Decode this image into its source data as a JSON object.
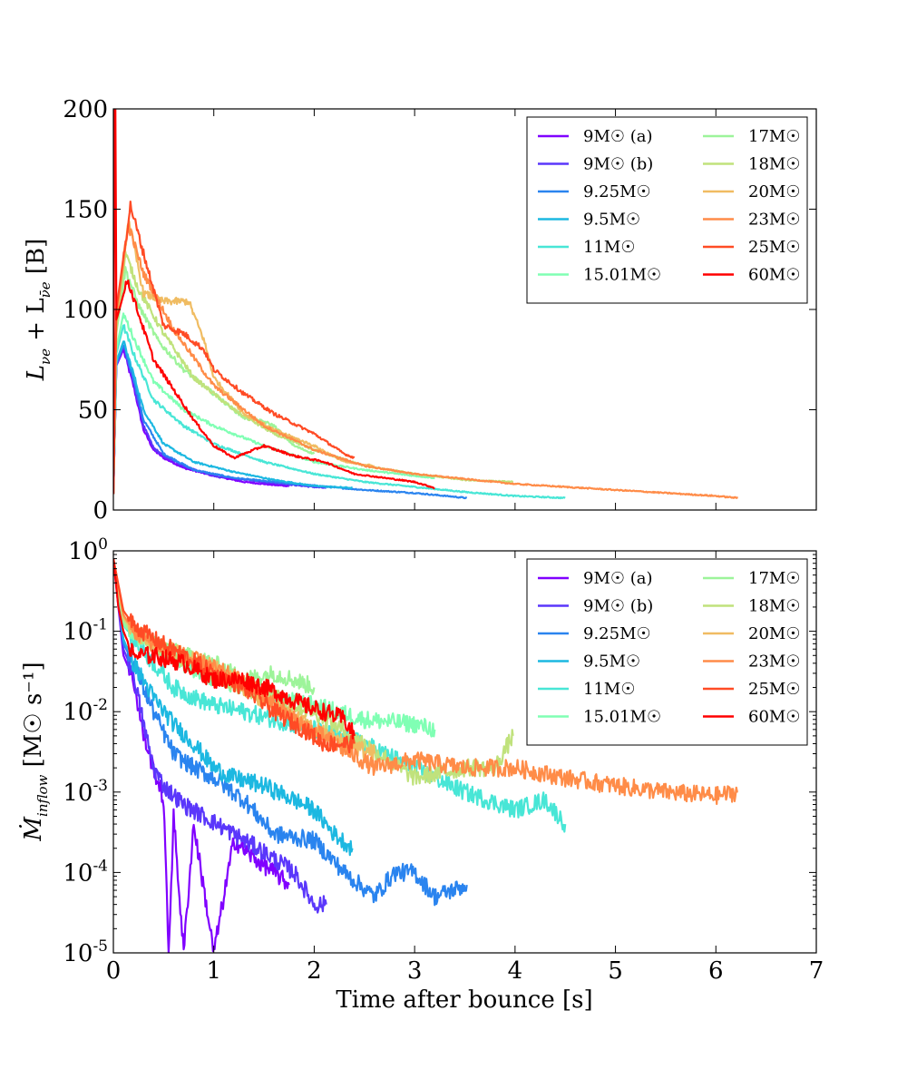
{
  "chart_data": [
    {
      "type": "line",
      "panel": "top",
      "ylabel_text": "L",
      "ylabel_sub1": "νe",
      "ylabel_plus": " + L",
      "ylabel_sub2": "ν̄e",
      "ylabel_unit": " [B]",
      "xlim": [
        0,
        7
      ],
      "ylim": [
        0,
        200
      ],
      "y_ticks": [
        "0",
        "50",
        "100",
        "150",
        "200"
      ],
      "legend_placement": "top-right",
      "series": [
        {
          "name": "9M☉ (a)",
          "color": "#8000ff",
          "x": [
            0,
            0.03,
            0.1,
            0.2,
            0.3,
            0.4,
            0.5,
            0.7,
            1.0,
            1.3,
            1.6,
            1.75
          ],
          "y": [
            8,
            72,
            80,
            62,
            40,
            30,
            26,
            21,
            17,
            14,
            12.5,
            12
          ]
        },
        {
          "name": "9M☉ (b)",
          "color": "#5a37fb",
          "x": [
            0,
            0.03,
            0.1,
            0.2,
            0.3,
            0.4,
            0.5,
            0.7,
            1.0,
            1.5,
            2.0,
            2.12
          ],
          "y": [
            8,
            72,
            82,
            64,
            42,
            31,
            27,
            22,
            17,
            14,
            11.5,
            11
          ]
        },
        {
          "name": "9.25M☉",
          "color": "#2a84ef",
          "x": [
            0,
            0.03,
            0.1,
            0.2,
            0.3,
            0.5,
            0.8,
            1.2,
            1.8,
            2.5,
            3.0,
            3.52
          ],
          "y": [
            8,
            73,
            82,
            66,
            45,
            28,
            20,
            16,
            13,
            10,
            8.5,
            6
          ]
        },
        {
          "name": "9.5M☉",
          "color": "#1cb8e1",
          "x": [
            0,
            0.03,
            0.1,
            0.2,
            0.3,
            0.5,
            0.8,
            1.2,
            1.6,
            2.0,
            2.38
          ],
          "y": [
            8,
            74,
            84,
            68,
            50,
            33,
            24,
            19,
            15,
            12,
            11
          ]
        },
        {
          "name": "11M☉",
          "color": "#48e6d6",
          "x": [
            0,
            0.03,
            0.1,
            0.2,
            0.4,
            0.7,
            1.0,
            1.5,
            2.0,
            2.5,
            3.0,
            3.5,
            4.0,
            4.5
          ],
          "y": [
            8,
            78,
            92,
            78,
            55,
            42,
            33,
            24,
            18,
            14,
            11.5,
            9,
            7,
            6
          ]
        },
        {
          "name": "15.01M☉",
          "color": "#80ffb4",
          "x": [
            0,
            0.03,
            0.1,
            0.2,
            0.4,
            0.7,
            1.0,
            1.5,
            2.0,
            2.5,
            3.0,
            3.2
          ],
          "y": [
            8,
            80,
            98,
            86,
            64,
            50,
            42,
            32,
            24,
            20,
            17,
            16
          ]
        },
        {
          "name": "17M☉",
          "color": "#9df49a",
          "x": [
            0,
            0.03,
            0.12,
            0.25,
            0.45,
            0.7,
            1.0,
            1.3,
            1.5,
            1.6,
            1.8,
            2.0
          ],
          "y": [
            8,
            88,
            120,
            102,
            84,
            70,
            58,
            46,
            44,
            42,
            32,
            28
          ]
        },
        {
          "name": "18M☉",
          "color": "#c0e27c",
          "x": [
            0,
            0.03,
            0.12,
            0.25,
            0.5,
            0.8,
            1.2,
            1.6,
            2.0,
            2.5,
            3.0,
            3.5,
            3.98
          ],
          "y": [
            8,
            90,
            128,
            110,
            88,
            66,
            50,
            38,
            30,
            22,
            18,
            15,
            14
          ]
        },
        {
          "name": "20M☉",
          "color": "#f0bc62",
          "x": [
            0,
            0.03,
            0.15,
            0.3,
            0.5,
            0.75,
            0.9,
            1.0,
            1.3,
            1.6,
            2.0,
            2.3,
            2.6
          ],
          "y": [
            8,
            95,
            145,
            108,
            104,
            104,
            85,
            66,
            48,
            40,
            32,
            24,
            22
          ]
        },
        {
          "name": "23M☉",
          "color": "#ff8c48",
          "x": [
            0,
            0.03,
            0.15,
            0.3,
            0.6,
            1.0,
            1.5,
            2.0,
            2.5,
            3.0,
            4.0,
            5.0,
            5.5,
            6.0,
            6.22
          ],
          "y": [
            8,
            97,
            142,
            118,
            90,
            62,
            42,
            30,
            22,
            18,
            13,
            10,
            8.5,
            7,
            6
          ]
        },
        {
          "name": "25M☉",
          "color": "#ff4b25",
          "x": [
            0,
            0.03,
            0.17,
            0.3,
            0.5,
            0.7,
            0.9,
            1.0,
            1.3,
            1.6,
            2.0,
            2.3,
            2.4
          ],
          "y": [
            8,
            100,
            152,
            128,
            92,
            88,
            80,
            70,
            58,
            48,
            38,
            28,
            26
          ]
        },
        {
          "name": "60M☉",
          "color": "#ff0000",
          "x": [
            0,
            0.01,
            0.015,
            0.02,
            0.03,
            0.06,
            0.14,
            0.25,
            0.4,
            0.6,
            0.8,
            1.0,
            1.2,
            1.5,
            1.8,
            2.1,
            2.4,
            2.7,
            3.0,
            3.2
          ],
          "y": [
            8,
            200,
            150,
            200,
            95,
            100,
            115,
            98,
            75,
            60,
            45,
            32,
            26,
            32,
            27,
            24,
            18,
            16,
            14,
            11
          ]
        }
      ]
    },
    {
      "type": "line",
      "panel": "bottom",
      "ylabel_text": "Ṁ",
      "ylabel_sub1": "inflow",
      "ylabel_unit": " [M☉ s⁻¹]",
      "xlabel": "Time after bounce [s]",
      "xlim": [
        0,
        7
      ],
      "ylim": [
        1e-05,
        1
      ],
      "yscale": "log",
      "x_ticks": [
        "0",
        "1",
        "2",
        "3",
        "4",
        "5",
        "6",
        "7"
      ],
      "y_ticks": [
        "10-5",
        "10-4",
        "10-3",
        "10-2",
        "10-1",
        "100"
      ],
      "legend_placement": "top-right",
      "series": [
        {
          "name": "9M☉ (a)",
          "color": "#8000ff",
          "x": [
            0,
            0.1,
            0.2,
            0.3,
            0.4,
            0.5,
            0.55,
            0.6,
            0.7,
            0.8,
            1.0,
            1.2,
            1.4,
            1.6,
            1.75
          ],
          "y": [
            0.8,
            0.05,
            0.025,
            0.005,
            0.002,
            0.0008,
            1e-05,
            0.0005,
            1e-05,
            0.0004,
            1e-05,
            0.00025,
            0.00015,
            0.0001,
            7e-05
          ]
        },
        {
          "name": "9M☉ (b)",
          "color": "#5a37fb",
          "x": [
            0,
            0.1,
            0.2,
            0.3,
            0.4,
            0.5,
            0.7,
            0.9,
            1.2,
            1.5,
            1.8,
            2.0,
            2.12
          ],
          "y": [
            0.8,
            0.06,
            0.03,
            0.007,
            0.002,
            0.0012,
            0.0007,
            0.0005,
            0.0003,
            0.00018,
            0.0001,
            4e-05,
            4e-05
          ]
        },
        {
          "name": "9.25M☉",
          "color": "#2a84ef",
          "x": [
            0,
            0.1,
            0.2,
            0.4,
            0.6,
            0.8,
            1.0,
            1.3,
            1.6,
            2.0,
            2.3,
            2.6,
            2.8,
            3.0,
            3.2,
            3.52
          ],
          "y": [
            0.8,
            0.07,
            0.04,
            0.01,
            0.003,
            0.002,
            0.0015,
            0.0008,
            0.0003,
            0.00025,
            0.0001,
            5e-05,
            0.0001,
            0.0001,
            5e-05,
            7e-05
          ]
        },
        {
          "name": "9.5M☉",
          "color": "#1cb8e1",
          "x": [
            0,
            0.1,
            0.2,
            0.4,
            0.6,
            0.8,
            1.0,
            1.2,
            1.5,
            1.8,
            2.0,
            2.2,
            2.38
          ],
          "y": [
            0.8,
            0.08,
            0.04,
            0.015,
            0.007,
            0.004,
            0.002,
            0.0015,
            0.0012,
            0.0008,
            0.0006,
            0.0003,
            0.0002
          ]
        },
        {
          "name": "11M☉",
          "color": "#48e6d6",
          "x": [
            0,
            0.1,
            0.2,
            0.4,
            0.6,
            0.8,
            1.0,
            1.3,
            1.6,
            2.0,
            2.5,
            3.0,
            3.5,
            4.0,
            4.3,
            4.5
          ],
          "y": [
            0.8,
            0.12,
            0.08,
            0.04,
            0.02,
            0.015,
            0.012,
            0.01,
            0.008,
            0.006,
            0.004,
            0.002,
            0.001,
            0.0006,
            0.0008,
            0.0004
          ]
        },
        {
          "name": "15.01M☉",
          "color": "#80ffb4",
          "x": [
            0,
            0.1,
            0.2,
            0.4,
            0.7,
            1.0,
            1.3,
            1.6,
            2.0,
            2.5,
            3.0,
            3.2
          ],
          "y": [
            0.8,
            0.12,
            0.09,
            0.07,
            0.04,
            0.025,
            0.02,
            0.015,
            0.012,
            0.008,
            0.007,
            0.006
          ]
        },
        {
          "name": "17M☉",
          "color": "#9df49a",
          "x": [
            0,
            0.1,
            0.2,
            0.4,
            0.7,
            1.0,
            1.3,
            1.6,
            1.8,
            2.0
          ],
          "y": [
            0.8,
            0.13,
            0.09,
            0.07,
            0.05,
            0.04,
            0.025,
            0.03,
            0.025,
            0.02
          ]
        },
        {
          "name": "18M☉",
          "color": "#c0e27c",
          "x": [
            0,
            0.1,
            0.2,
            0.4,
            0.7,
            1.0,
            1.3,
            1.6,
            2.0,
            2.5,
            3.0,
            3.5,
            3.8,
            3.98
          ],
          "y": [
            0.8,
            0.14,
            0.1,
            0.07,
            0.045,
            0.03,
            0.02,
            0.015,
            0.01,
            0.004,
            0.0015,
            0.002,
            0.002,
            0.005
          ]
        },
        {
          "name": "20M☉",
          "color": "#f0bc62",
          "x": [
            0,
            0.1,
            0.2,
            0.4,
            0.7,
            1.0,
            1.3,
            1.6,
            2.0,
            2.3,
            2.6
          ],
          "y": [
            0.8,
            0.15,
            0.1,
            0.07,
            0.05,
            0.035,
            0.02,
            0.012,
            0.006,
            0.004,
            0.003
          ]
        },
        {
          "name": "23M☉",
          "color": "#ff8c48",
          "x": [
            0,
            0.1,
            0.2,
            0.4,
            0.7,
            1.0,
            1.4,
            1.8,
            2.2,
            2.6,
            3.0,
            3.5,
            4.0,
            4.5,
            5.0,
            5.5,
            6.0,
            6.22
          ],
          "y": [
            0.8,
            0.16,
            0.1,
            0.07,
            0.05,
            0.035,
            0.02,
            0.008,
            0.004,
            0.002,
            0.0025,
            0.002,
            0.002,
            0.0015,
            0.0012,
            0.001,
            0.0009,
            0.001
          ]
        },
        {
          "name": "25M☉",
          "color": "#ff4b25",
          "x": [
            0,
            0.1,
            0.2,
            0.4,
            0.7,
            1.0,
            1.3,
            1.6,
            1.9,
            2.1,
            2.3,
            2.4
          ],
          "y": [
            0.8,
            0.18,
            0.12,
            0.08,
            0.05,
            0.03,
            0.02,
            0.01,
            0.006,
            0.004,
            0.004,
            0.004
          ]
        },
        {
          "name": "60M☉",
          "color": "#ff0000",
          "x": [
            0,
            0.05,
            0.1,
            0.2,
            0.4,
            0.7,
            1.0,
            1.3,
            1.6,
            1.9,
            2.1,
            2.3,
            2.4
          ],
          "y": [
            0.8,
            0.2,
            0.1,
            0.05,
            0.05,
            0.04,
            0.025,
            0.025,
            0.018,
            0.012,
            0.01,
            0.008,
            0.005
          ]
        }
      ]
    }
  ]
}
